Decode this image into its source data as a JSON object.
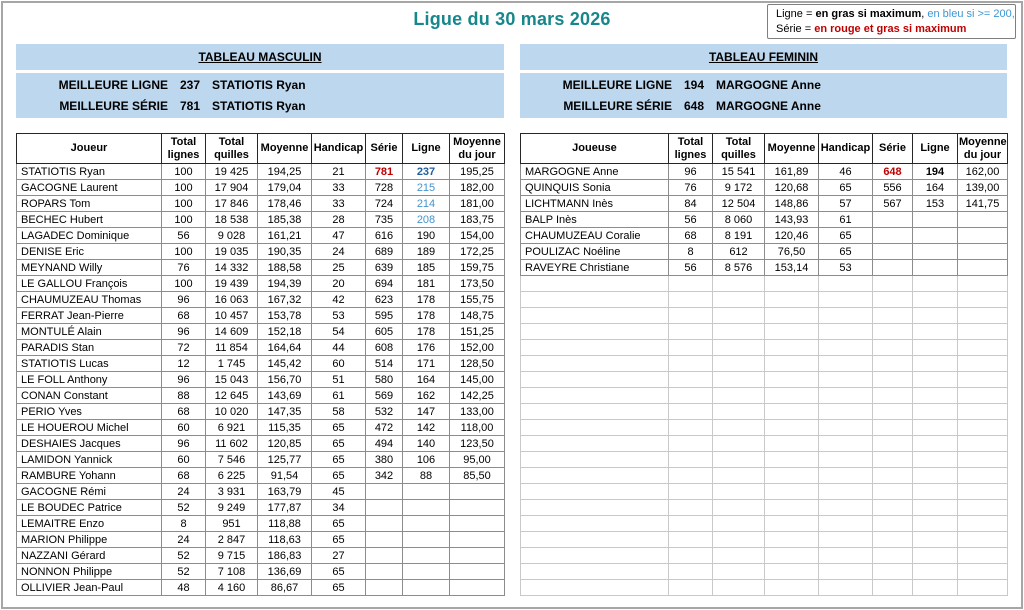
{
  "title": "Ligue du 30 mars 2026",
  "legend": {
    "line1": [
      {
        "t": "Ligne = ",
        "c": ""
      },
      {
        "t": "en gras si maximum",
        "c": "b"
      },
      {
        "t": ", ",
        "c": ""
      },
      {
        "t": "en bleu si  >= 200,",
        "c": "blue"
      }
    ],
    "line2": [
      {
        "t": "Série = ",
        "c": ""
      },
      {
        "t": "en rouge et gras si maximum",
        "c": "red"
      }
    ]
  },
  "men": {
    "section_title": "TABLEAU MASCULIN",
    "best_line_label": "MEILLEURE LIGNE",
    "best_line_value": "237",
    "best_line_name": "STATIOTIS Ryan",
    "best_series_label": "MEILLEURE SÉRIE",
    "best_series_value": "781",
    "best_series_name": "STATIOTIS Ryan",
    "columns": [
      "Joueur",
      "Total lignes",
      "Total quilles",
      "Moyenne",
      "Handicap",
      "Série",
      "Ligne",
      "Moyenne du jour"
    ],
    "rows": [
      {
        "cells": [
          "STATIOTIS Ryan",
          "100",
          "19 425",
          "194,25",
          "21",
          "781",
          "237",
          "195,25"
        ],
        "styles": {
          "5": "serie-max",
          "6": "ligne-max"
        }
      },
      {
        "cells": [
          "GACOGNE Laurent",
          "100",
          "17 904",
          "179,04",
          "33",
          "728",
          "215",
          "182,00"
        ],
        "styles": {
          "6": "ligne-blue"
        }
      },
      {
        "cells": [
          "ROPARS Tom",
          "100",
          "17 846",
          "178,46",
          "33",
          "724",
          "214",
          "181,00"
        ],
        "styles": {
          "6": "ligne-blue"
        }
      },
      {
        "cells": [
          "BECHEC Hubert",
          "100",
          "18 538",
          "185,38",
          "28",
          "735",
          "208",
          "183,75"
        ],
        "styles": {
          "6": "ligne-blue"
        }
      },
      {
        "cells": [
          "LAGADEC Dominique",
          "56",
          "9 028",
          "161,21",
          "47",
          "616",
          "190",
          "154,00"
        ],
        "styles": {}
      },
      {
        "cells": [
          "DENISE Eric",
          "100",
          "19 035",
          "190,35",
          "24",
          "689",
          "189",
          "172,25"
        ],
        "styles": {}
      },
      {
        "cells": [
          "MEYNAND Willy",
          "76",
          "14 332",
          "188,58",
          "25",
          "639",
          "185",
          "159,75"
        ],
        "styles": {}
      },
      {
        "cells": [
          "LE GALLOU François",
          "100",
          "19 439",
          "194,39",
          "20",
          "694",
          "181",
          "173,50"
        ],
        "styles": {}
      },
      {
        "cells": [
          "CHAUMUZEAU Thomas",
          "96",
          "16 063",
          "167,32",
          "42",
          "623",
          "178",
          "155,75"
        ],
        "styles": {}
      },
      {
        "cells": [
          "FERRAT Jean-Pierre",
          "68",
          "10 457",
          "153,78",
          "53",
          "595",
          "178",
          "148,75"
        ],
        "styles": {}
      },
      {
        "cells": [
          "MONTULÉ Alain",
          "96",
          "14 609",
          "152,18",
          "54",
          "605",
          "178",
          "151,25"
        ],
        "styles": {}
      },
      {
        "cells": [
          "PARADIS Stan",
          "72",
          "11 854",
          "164,64",
          "44",
          "608",
          "176",
          "152,00"
        ],
        "styles": {}
      },
      {
        "cells": [
          "STATIOTIS Lucas",
          "12",
          "1 745",
          "145,42",
          "60",
          "514",
          "171",
          "128,50"
        ],
        "styles": {}
      },
      {
        "cells": [
          "LE FOLL Anthony",
          "96",
          "15 043",
          "156,70",
          "51",
          "580",
          "164",
          "145,00"
        ],
        "styles": {}
      },
      {
        "cells": [
          "CONAN Constant",
          "88",
          "12 645",
          "143,69",
          "61",
          "569",
          "162",
          "142,25"
        ],
        "styles": {}
      },
      {
        "cells": [
          "PERIO Yves",
          "68",
          "10 020",
          "147,35",
          "58",
          "532",
          "147",
          "133,00"
        ],
        "styles": {}
      },
      {
        "cells": [
          "LE HOUEROU Michel",
          "60",
          "6 921",
          "115,35",
          "65",
          "472",
          "142",
          "118,00"
        ],
        "styles": {}
      },
      {
        "cells": [
          "DESHAIES Jacques",
          "96",
          "11 602",
          "120,85",
          "65",
          "494",
          "140",
          "123,50"
        ],
        "styles": {}
      },
      {
        "cells": [
          "LAMIDON Yannick",
          "60",
          "7 546",
          "125,77",
          "65",
          "380",
          "106",
          "95,00"
        ],
        "styles": {}
      },
      {
        "cells": [
          "RAMBURE Yohann",
          "68",
          "6 225",
          "91,54",
          "65",
          "342",
          "88",
          "85,50"
        ],
        "styles": {}
      },
      {
        "cells": [
          "GACOGNE Rémi",
          "24",
          "3 931",
          "163,79",
          "45",
          "",
          "",
          ""
        ],
        "styles": {}
      },
      {
        "cells": [
          "LE BOUDEC Patrice",
          "52",
          "9 249",
          "177,87",
          "34",
          "",
          "",
          ""
        ],
        "styles": {}
      },
      {
        "cells": [
          "LEMAITRE Enzo",
          "8",
          "951",
          "118,88",
          "65",
          "",
          "",
          ""
        ],
        "styles": {}
      },
      {
        "cells": [
          "MARION Philippe",
          "24",
          "2 847",
          "118,63",
          "65",
          "",
          "",
          ""
        ],
        "styles": {}
      },
      {
        "cells": [
          "NAZZANI Gérard",
          "52",
          "9 715",
          "186,83",
          "27",
          "",
          "",
          ""
        ],
        "styles": {}
      },
      {
        "cells": [
          "NONNON Philippe",
          "52",
          "7 108",
          "136,69",
          "65",
          "",
          "",
          ""
        ],
        "styles": {}
      },
      {
        "cells": [
          "OLLIVIER Jean-Paul",
          "48",
          "4 160",
          "86,67",
          "65",
          "",
          "",
          ""
        ],
        "styles": {}
      }
    ],
    "empty_rows": 0
  },
  "women": {
    "section_title": "TABLEAU FEMININ",
    "best_line_label": "MEILLEURE LIGNE",
    "best_line_value": "194",
    "best_line_name": "MARGOGNE Anne",
    "best_series_label": "MEILLEURE SÉRIE",
    "best_series_value": "648",
    "best_series_name": "MARGOGNE Anne",
    "columns": [
      "Joueuse",
      "Total lignes",
      "Total quilles",
      "Moyenne",
      "Handicap",
      "Série",
      "Ligne",
      "Moyenne du jour"
    ],
    "rows": [
      {
        "cells": [
          "MARGOGNE Anne",
          "96",
          "15 541",
          "161,89",
          "46",
          "648",
          "194",
          "162,00"
        ],
        "styles": {
          "5": "serie-max",
          "6": "ligne-max-black"
        }
      },
      {
        "cells": [
          "QUINQUIS Sonia",
          "76",
          "9 172",
          "120,68",
          "65",
          "556",
          "164",
          "139,00"
        ],
        "styles": {}
      },
      {
        "cells": [
          "LICHTMANN Inès",
          "84",
          "12 504",
          "148,86",
          "57",
          "567",
          "153",
          "141,75"
        ],
        "styles": {}
      },
      {
        "cells": [
          "BALP Inès",
          "56",
          "8 060",
          "143,93",
          "61",
          "",
          "",
          ""
        ],
        "styles": {}
      },
      {
        "cells": [
          "CHAUMUZEAU Coralie",
          "68",
          "8 191",
          "120,46",
          "65",
          "",
          "",
          ""
        ],
        "styles": {}
      },
      {
        "cells": [
          "POULIZAC Noéline",
          "8",
          "612",
          "76,50",
          "65",
          "",
          "",
          ""
        ],
        "styles": {}
      },
      {
        "cells": [
          "RAVEYRE Christiane",
          "56",
          "8 576",
          "153,14",
          "53",
          "",
          "",
          ""
        ],
        "styles": {}
      }
    ],
    "empty_rows": 20
  },
  "colors": {
    "title_teal": "#17878c",
    "band_blue": "#bdd7ee",
    "serie_max_red": "#c00000",
    "ligne_max_blue": "#1f5fa0",
    "ligne_over200_blue": "#4495cc"
  }
}
